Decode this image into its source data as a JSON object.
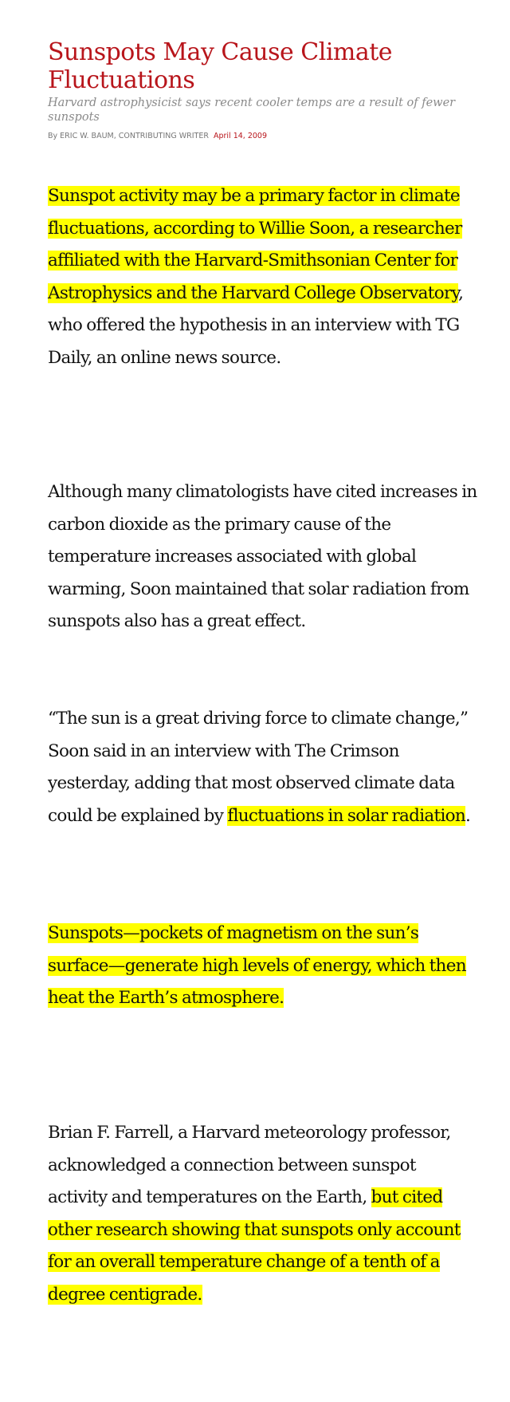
{
  "article": {
    "headline": "Sunspots May Cause Climate Fluctuations",
    "subhead": "Harvard astrophysicist says recent cooler temps are a result of fewer sunspots",
    "byline": "By ERIC W. BAUM, CONTRIBUTING WRITER",
    "date": "April 14, 2009",
    "highlight_color": "#ffff00",
    "headline_color": "#b8151b",
    "paragraphs": [
      {
        "hl1": "Sunspot activity may be a primary factor in climate fluctuations, according to Willie Soon, a researcher affiliated with the Harvard-Smithsonian Center for Astrophysics and the Harvard College Observatory",
        "rest": ", who offered the hypothesis in an interview with TG Daily, an online news source."
      },
      {
        "text": "Although many climatologists have cited increases in carbon dioxide as the primary cause of the temperature increases associated with global warming, Soon maintained that solar radiation from sunspots also has a great effect."
      },
      {
        "pre": "“The sun is a great driving force to climate change,” Soon said in an interview with The Crimson yesterday, adding that most observed climate data could be explained by ",
        "hl": "fluctuations in solar radiation",
        "post": "."
      },
      {
        "hl": "Sunspots—pockets of magnetism on the sun’s surface—generate high levels of energy, which then heat the Earth’s atmosphere. "
      },
      {
        "pre": "Brian F. Farrell, a Harvard meteorology professor, acknowledged a connection between sunspot activity and temperatures on the Earth, ",
        "hl": "but cited other research showing that sunspots only account for an overall temperature change of a tenth of a degree centigrade."
      }
    ]
  }
}
